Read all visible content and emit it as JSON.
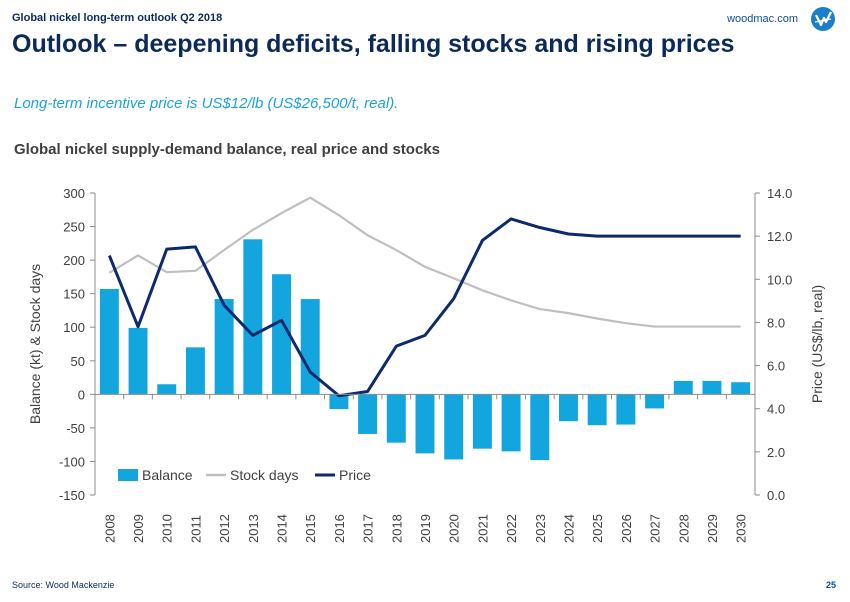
{
  "header": {
    "top_label": "Global nickel long-term outlook Q2 2018",
    "site": "woodmac.com",
    "title": "Outlook – deepening deficits, falling stocks and rising prices",
    "subtitle": "Long-term incentive price is US$12/lb (US$26,500/t, real).",
    "chart_title": "Global nickel supply-demand balance, real price and stocks"
  },
  "footer": {
    "source": "Source: Wood Mackenzie",
    "page": "25"
  },
  "colors": {
    "balance": "#12a5de",
    "stock_days": "#bfbfbf",
    "price": "#0d2a6e",
    "brand": "#0b2a5b"
  },
  "chart_data": {
    "type": "bar",
    "title": "Global nickel supply-demand balance, real price and stocks",
    "categories": [
      "2008",
      "2009",
      "2010",
      "2011",
      "2012",
      "2013",
      "2014",
      "2015",
      "2016",
      "2017",
      "2018",
      "2019",
      "2020",
      "2021",
      "2022",
      "2023",
      "2024",
      "2025",
      "2026",
      "2027",
      "2028",
      "2029",
      "2030"
    ],
    "ylabel": "Balance (kt)  & Stock days",
    "y2label": "Price (US$/lb, real)",
    "ylim": [
      -150,
      300
    ],
    "y_ticks": [
      -150,
      -100,
      -50,
      0,
      50,
      100,
      150,
      200,
      250,
      300
    ],
    "y2lim": [
      0,
      14
    ],
    "y2_ticks": [
      "0.0",
      "2.0",
      "4.0",
      "6.0",
      "8.0",
      "10.0",
      "12.0",
      "14.0"
    ],
    "legend_position": "bottom-left",
    "series": [
      {
        "name": "Balance",
        "type": "bar",
        "axis": "left",
        "values": [
          157,
          99,
          15,
          70,
          142,
          231,
          179,
          142,
          -22,
          -59,
          -72,
          -88,
          -97,
          -81,
          -85,
          -98,
          -40,
          -46,
          -45,
          -21,
          20,
          20,
          18
        ]
      },
      {
        "name": "Stock days",
        "type": "line",
        "axis": "left",
        "values": [
          181,
          207,
          182,
          184,
          215,
          245,
          270,
          293,
          267,
          237,
          215,
          190,
          173,
          155,
          140,
          127,
          121,
          113,
          106,
          101,
          101,
          101,
          101
        ]
      },
      {
        "name": "Price",
        "type": "line",
        "axis": "right",
        "values": [
          11.1,
          7.8,
          11.4,
          11.5,
          8.8,
          7.4,
          8.1,
          5.7,
          4.6,
          4.8,
          6.9,
          7.4,
          9.1,
          11.8,
          12.8,
          12.4,
          12.1,
          12.0,
          12.0,
          12.0,
          12.0,
          12.0,
          12.0
        ]
      }
    ]
  }
}
